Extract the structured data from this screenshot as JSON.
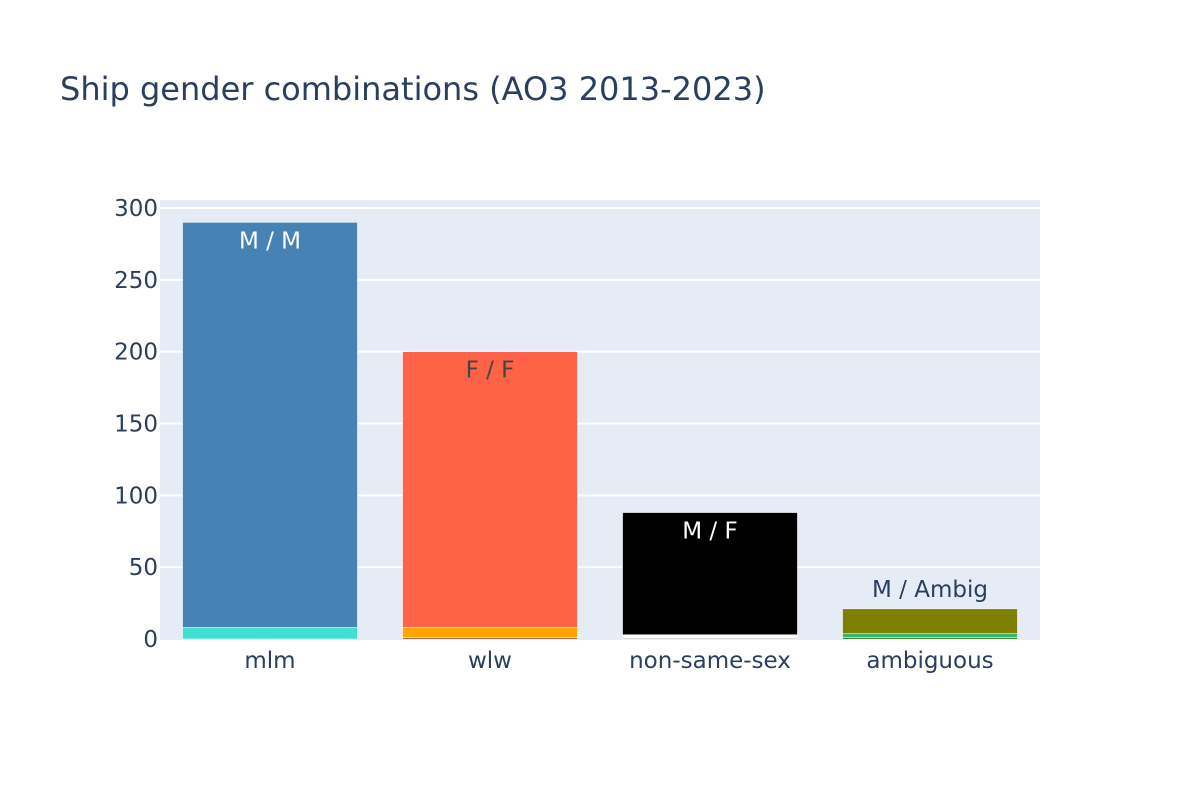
{
  "chart_data": {
    "type": "bar",
    "barmode": "stack",
    "title": "Ship gender combinations (AO3 2013-2023)",
    "xlabel": "",
    "ylabel": "",
    "categories": [
      "mlm",
      "wlw",
      "non-same-sex",
      "ambiguous"
    ],
    "ylim": [
      0,
      300
    ],
    "yticks": [
      0,
      50,
      100,
      150,
      200,
      250,
      300
    ],
    "grid": true,
    "legend": "none",
    "plot_background": "#e5ecf6",
    "text_color": "#2a3f5f",
    "series": [
      {
        "category": "mlm",
        "values": [
          {
            "value": 8,
            "color": "#40e0d0",
            "label": ""
          },
          {
            "value": 282,
            "color": "#4682b4",
            "label": "M / M",
            "label_color": "#ffffff"
          }
        ]
      },
      {
        "category": "wlw",
        "values": [
          {
            "value": 1,
            "color": "#8b4513",
            "label": ""
          },
          {
            "value": 7,
            "color": "#ffa500",
            "label": ""
          },
          {
            "value": 192,
            "color": "#ff6347",
            "label": "F / F",
            "label_color": "#444444"
          }
        ]
      },
      {
        "category": "non-same-sex",
        "values": [
          {
            "value": 1,
            "color": "#cccccc",
            "label": ""
          },
          {
            "value": 2,
            "color": "#ffffff",
            "label": ""
          },
          {
            "value": 85,
            "color": "#000000",
            "label": "M / F",
            "label_color": "#ffffff"
          }
        ]
      },
      {
        "category": "ambiguous",
        "values": [
          {
            "value": 1,
            "color": "#006400",
            "label": ""
          },
          {
            "value": 3,
            "color": "#3cb371",
            "label": ""
          },
          {
            "value": 17,
            "color": "#808000",
            "label": "M / Ambig",
            "label_color": "#2a3f5f",
            "label_outside": true
          }
        ]
      }
    ]
  }
}
